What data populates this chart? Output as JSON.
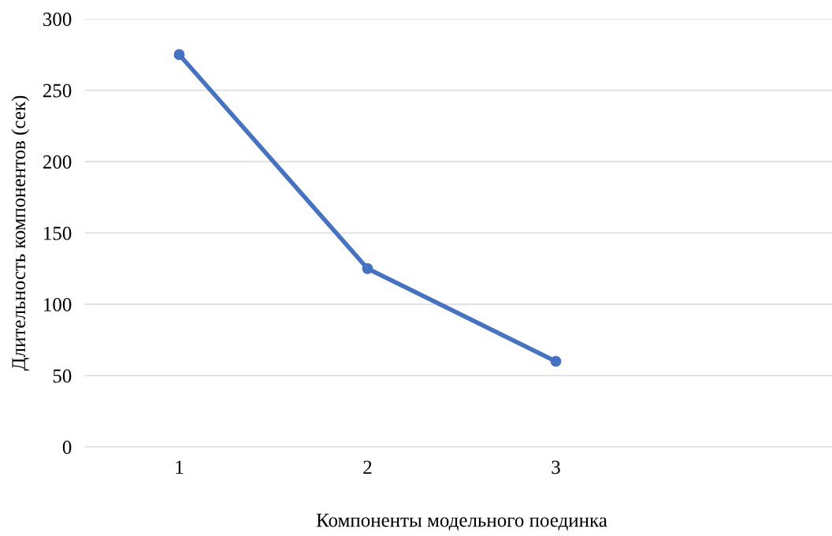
{
  "chart_data": {
    "type": "line",
    "xlabel": "Компоненты модельного поединка",
    "ylabel": "Длительность компонентов (сек)",
    "categories": [
      "1",
      "2",
      "3",
      null
    ],
    "series": [
      {
        "color": "#4472c4",
        "values": [
          275,
          125,
          60,
          null
        ]
      }
    ],
    "ylim": [
      0,
      300
    ],
    "yticks": [
      0,
      50,
      100,
      150,
      200,
      250,
      300
    ],
    "grid": "y",
    "marker": "circle",
    "line_style": "solid"
  }
}
